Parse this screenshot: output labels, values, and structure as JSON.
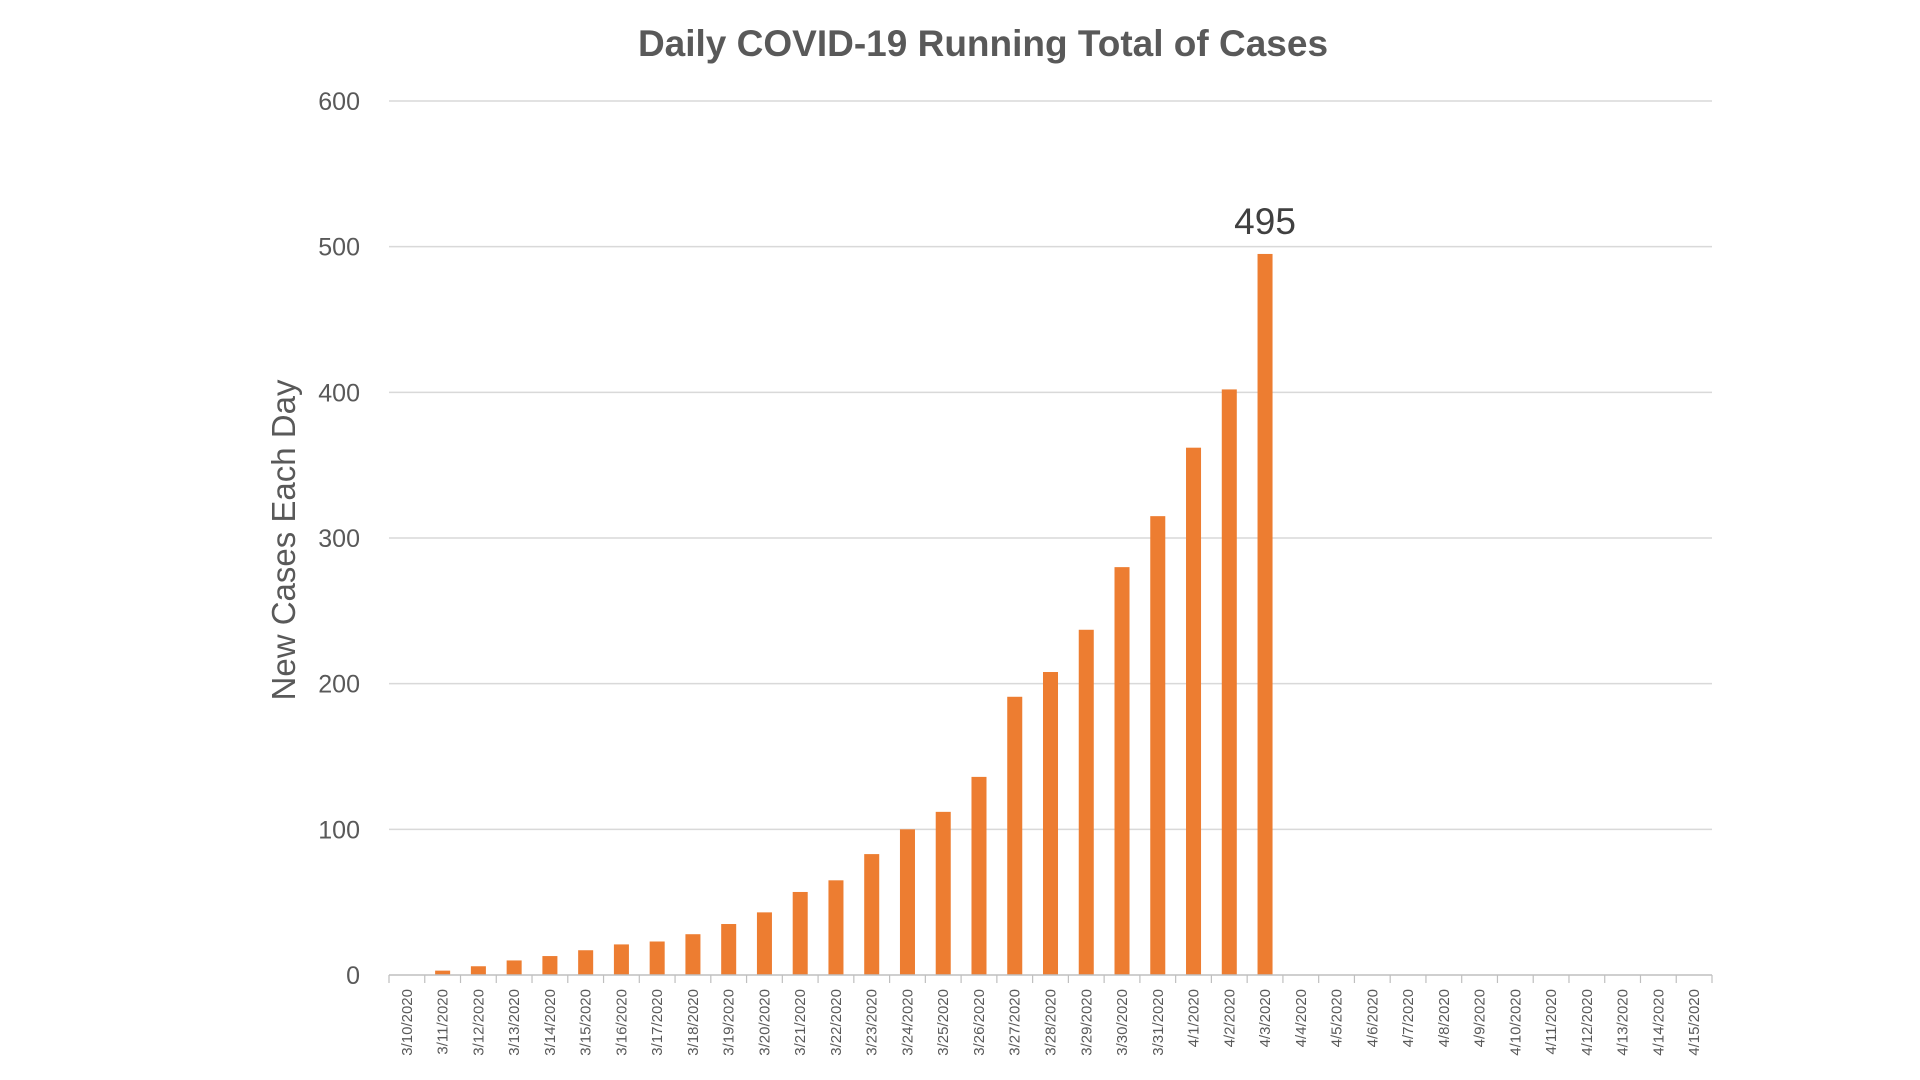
{
  "chart_data": {
    "type": "bar",
    "title": "Daily COVID-19 Running Total of Cases",
    "xlabel": "",
    "ylabel": "New Cases Each Day",
    "ylim": [
      0,
      600
    ],
    "yticks": [
      0,
      100,
      200,
      300,
      400,
      500,
      600
    ],
    "grid": true,
    "legend": "none",
    "bar_color": "#ED7D31",
    "categories": [
      "3/10/2020",
      "3/11/2020",
      "3/12/2020",
      "3/13/2020",
      "3/14/2020",
      "3/15/2020",
      "3/16/2020",
      "3/17/2020",
      "3/18/2020",
      "3/19/2020",
      "3/20/2020",
      "3/21/2020",
      "3/22/2020",
      "3/23/2020",
      "3/24/2020",
      "3/25/2020",
      "3/26/2020",
      "3/27/2020",
      "3/28/2020",
      "3/29/2020",
      "3/30/2020",
      "3/31/2020",
      "4/1/2020",
      "4/2/2020",
      "4/3/2020",
      "4/4/2020",
      "4/5/2020",
      "4/6/2020",
      "4/7/2020",
      "4/8/2020",
      "4/9/2020",
      "4/10/2020",
      "4/11/2020",
      "4/12/2020",
      "4/13/2020",
      "4/14/2020",
      "4/15/2020"
    ],
    "values": [
      0,
      3,
      6,
      10,
      13,
      17,
      21,
      23,
      28,
      35,
      43,
      57,
      65,
      83,
      100,
      112,
      136,
      191,
      208,
      237,
      280,
      315,
      362,
      402,
      495,
      null,
      null,
      null,
      null,
      null,
      null,
      null,
      null,
      null,
      null,
      null,
      null
    ],
    "annotations": [
      {
        "category": "4/3/2020",
        "text": "495"
      }
    ]
  }
}
